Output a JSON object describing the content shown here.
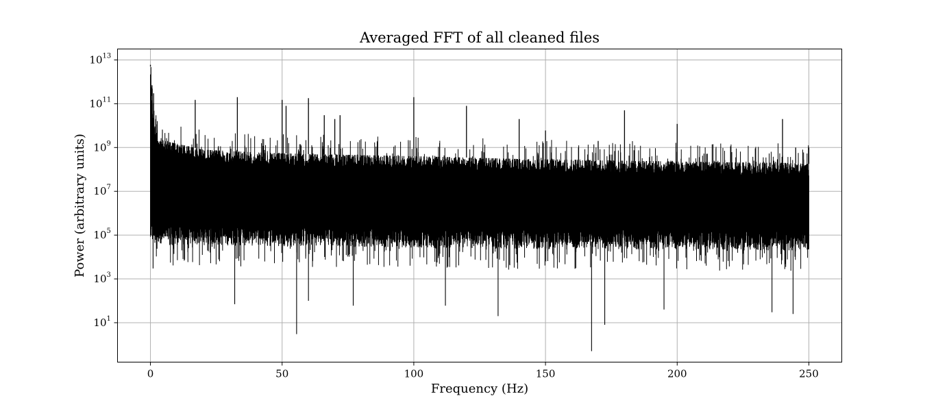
{
  "chart_data": {
    "type": "line",
    "title": "Averaged FFT of all cleaned files",
    "xlabel": "Frequency (Hz)",
    "ylabel": "Power (arbitrary units)",
    "xscale": "linear",
    "yscale": "log",
    "xlim": [
      -12.5,
      262.5
    ],
    "ylim_log10": [
      -0.8,
      13.5
    ],
    "grid": true,
    "legend": "none",
    "line_color": "#000000",
    "x_ticks": [
      {
        "value": 0,
        "label": "0"
      },
      {
        "value": 50,
        "label": "50"
      },
      {
        "value": 100,
        "label": "100"
      },
      {
        "value": 150,
        "label": "150"
      },
      {
        "value": 200,
        "label": "200"
      },
      {
        "value": 250,
        "label": "250"
      }
    ],
    "y_ticks": [
      {
        "exponent": 13,
        "base": "10",
        "sup": "13"
      },
      {
        "exponent": 11,
        "base": "10",
        "sup": "11"
      },
      {
        "exponent": 9,
        "base": "10",
        "sup": "9"
      },
      {
        "exponent": 7,
        "base": "10",
        "sup": "7"
      },
      {
        "exponent": 5,
        "base": "10",
        "sup": "5"
      },
      {
        "exponent": 3,
        "base": "10",
        "sup": "3"
      },
      {
        "exponent": 1,
        "base": "10",
        "sup": "1"
      }
    ],
    "series": [
      {
        "x_range": [
          0,
          250
        ],
        "upper_envelope": {
          "x": [
            0,
            1,
            2,
            5,
            10,
            20,
            40,
            60,
            80,
            100,
            120,
            140,
            160,
            180,
            200,
            220,
            240,
            250
          ],
          "y": [
            5000000000000.0,
            30000000000.0,
            5000000000.0,
            2000000000.0,
            1500000000.0,
            800000000.0,
            600000000.0,
            500000000.0,
            450000000.0,
            400000000.0,
            350000000.0,
            300000000.0,
            280000000.0,
            250000000.0,
            230000000.0,
            210000000.0,
            200000000.0,
            180000000.0
          ]
        },
        "lower_envelope": {
          "x": [
            0,
            10,
            50,
            100,
            150,
            200,
            250
          ],
          "y": [
            100000.0,
            80000.0,
            70000.0,
            60000.0,
            50000.0,
            50000.0,
            40000.0
          ]
        },
        "peaks": [
          {
            "x": 0,
            "y": 6000000000000.0
          },
          {
            "x": 0.6,
            "y": 700000000000.0
          },
          {
            "x": 1.2,
            "y": 300000000000.0
          },
          {
            "x": 17,
            "y": 150000000000.0
          },
          {
            "x": 33,
            "y": 200000000000.0
          },
          {
            "x": 50,
            "y": 150000000000.0
          },
          {
            "x": 51.5,
            "y": 80000000000.0
          },
          {
            "x": 60,
            "y": 180000000000.0
          },
          {
            "x": 66,
            "y": 30000000000.0
          },
          {
            "x": 70,
            "y": 20000000000.0
          },
          {
            "x": 72,
            "y": 30000000000.0
          },
          {
            "x": 100,
            "y": 200000000000.0
          },
          {
            "x": 120,
            "y": 80000000000.0
          },
          {
            "x": 140,
            "y": 20000000000.0
          },
          {
            "x": 150,
            "y": 6000000000.0
          },
          {
            "x": 170,
            "y": 2000000000.0
          },
          {
            "x": 180,
            "y": 50000000000.0
          },
          {
            "x": 200,
            "y": 12000000000.0
          },
          {
            "x": 240,
            "y": 20000000000.0
          },
          {
            "x": 245,
            "y": 1000000000.0
          },
          {
            "x": 250,
            "y": 1000000000.0
          }
        ],
        "dips": [
          {
            "x": 1,
            "y": 3000.0
          },
          {
            "x": 32,
            "y": 70
          },
          {
            "x": 55.5,
            "y": 3
          },
          {
            "x": 60,
            "y": 100
          },
          {
            "x": 77,
            "y": 60
          },
          {
            "x": 112,
            "y": 60
          },
          {
            "x": 132,
            "y": 20
          },
          {
            "x": 167.5,
            "y": 0.5
          },
          {
            "x": 172.5,
            "y": 8
          },
          {
            "x": 195,
            "y": 40
          },
          {
            "x": 236,
            "y": 30
          },
          {
            "x": 244,
            "y": 25
          }
        ]
      }
    ]
  }
}
